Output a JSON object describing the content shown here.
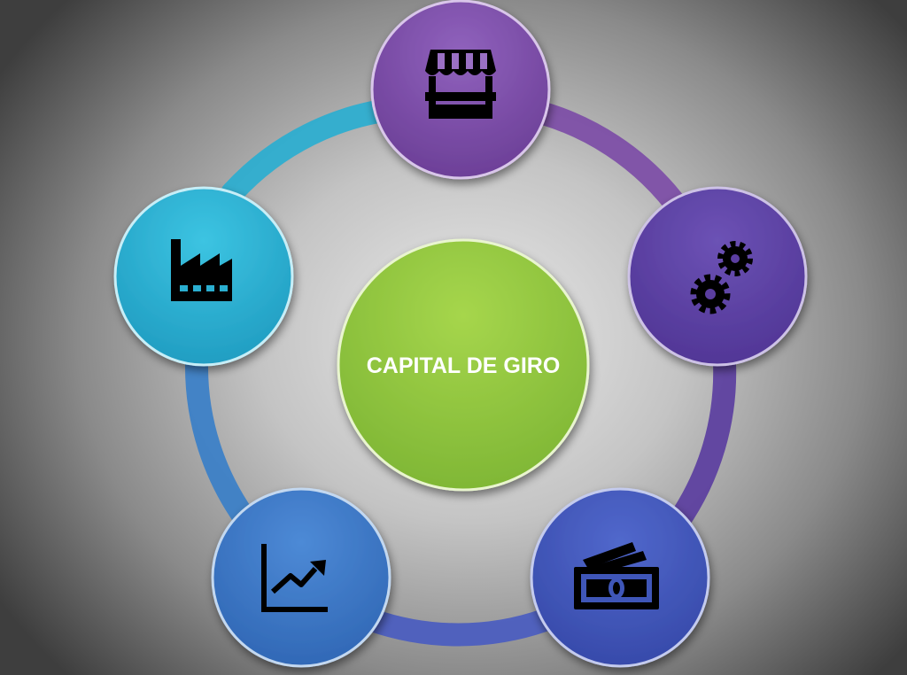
{
  "title": "CAPITAL DE GIRO",
  "colors": {
    "center": "#8dc63f",
    "top": "#7b4aa6",
    "right": "#5b3ea0",
    "bottom_right": "#3f56b8",
    "bottom_left": "#3a75c4",
    "left": "#2aaed0"
  },
  "nodes": [
    {
      "id": "top",
      "icon": "market-stall-icon"
    },
    {
      "id": "right",
      "icon": "gears-icon"
    },
    {
      "id": "bottom-right",
      "icon": "money-bills-icon"
    },
    {
      "id": "bottom-left",
      "icon": "growth-chart-icon"
    },
    {
      "id": "left",
      "icon": "factory-icon"
    }
  ]
}
